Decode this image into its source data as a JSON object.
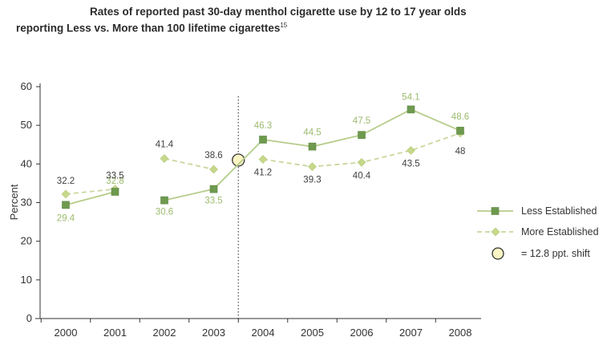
{
  "title_line1": "Rates of reported past 30-day menthol cigarette use by 12 to 17 year olds",
  "title_line2": "reporting Less vs. More than 100 lifetime cigarettes",
  "title_sup": "15",
  "colors": {
    "less": "#6e9a4e",
    "less_line": "#b6cc8a",
    "more": "#c6d88a",
    "more_line": "#c8d79c",
    "label_less": "#9cbb6e",
    "label_more": "#3f3f3f",
    "shift_fill": "#fbf4c4"
  },
  "chart_data": {
    "type": "line",
    "title": "Rates of reported past 30-day menthol cigarette use by 12 to 17 year olds reporting Less vs. More than 100 lifetime cigarettes",
    "xlabel": "",
    "ylabel": "Percent",
    "ylim": [
      0,
      60
    ],
    "yticks": [
      0,
      10,
      20,
      30,
      40,
      50,
      60
    ],
    "categories": [
      "2000",
      "2001",
      "2002",
      "2003",
      "2004",
      "2005",
      "2006",
      "2007",
      "2008"
    ],
    "grid": false,
    "legend_position": "right",
    "series": [
      {
        "name": "Less Established",
        "marker": "square",
        "values": [
          29.4,
          32.8,
          30.6,
          33.5,
          46.3,
          44.5,
          47.5,
          54.1,
          48.6
        ],
        "labels": [
          "29.4",
          "32.8",
          "30.6",
          "33.5",
          "46.3",
          "44.5",
          "47.5",
          "54.1",
          "48.6"
        ]
      },
      {
        "name": "More Established",
        "marker": "diamond",
        "values": [
          32.2,
          33.5,
          41.4,
          38.6,
          41.2,
          39.3,
          40.4,
          43.5,
          48
        ],
        "labels": [
          "32.2",
          "33.5",
          "41.4",
          "38.6",
          "41.2",
          "39.3",
          "40.4",
          "43.5",
          "48"
        ]
      }
    ],
    "annotations": [
      {
        "type": "vertical-dotted-line",
        "between": [
          "2003",
          "2004"
        ]
      },
      {
        "type": "circle-marker",
        "at": [
          "2003",
          "2004"
        ],
        "value": 41,
        "legend": "= 12.8 ppt. shift"
      }
    ]
  },
  "legend": {
    "less_label": "Less Established",
    "more_label": "More Established",
    "shift_label": "= 12.8 ppt. shift"
  }
}
